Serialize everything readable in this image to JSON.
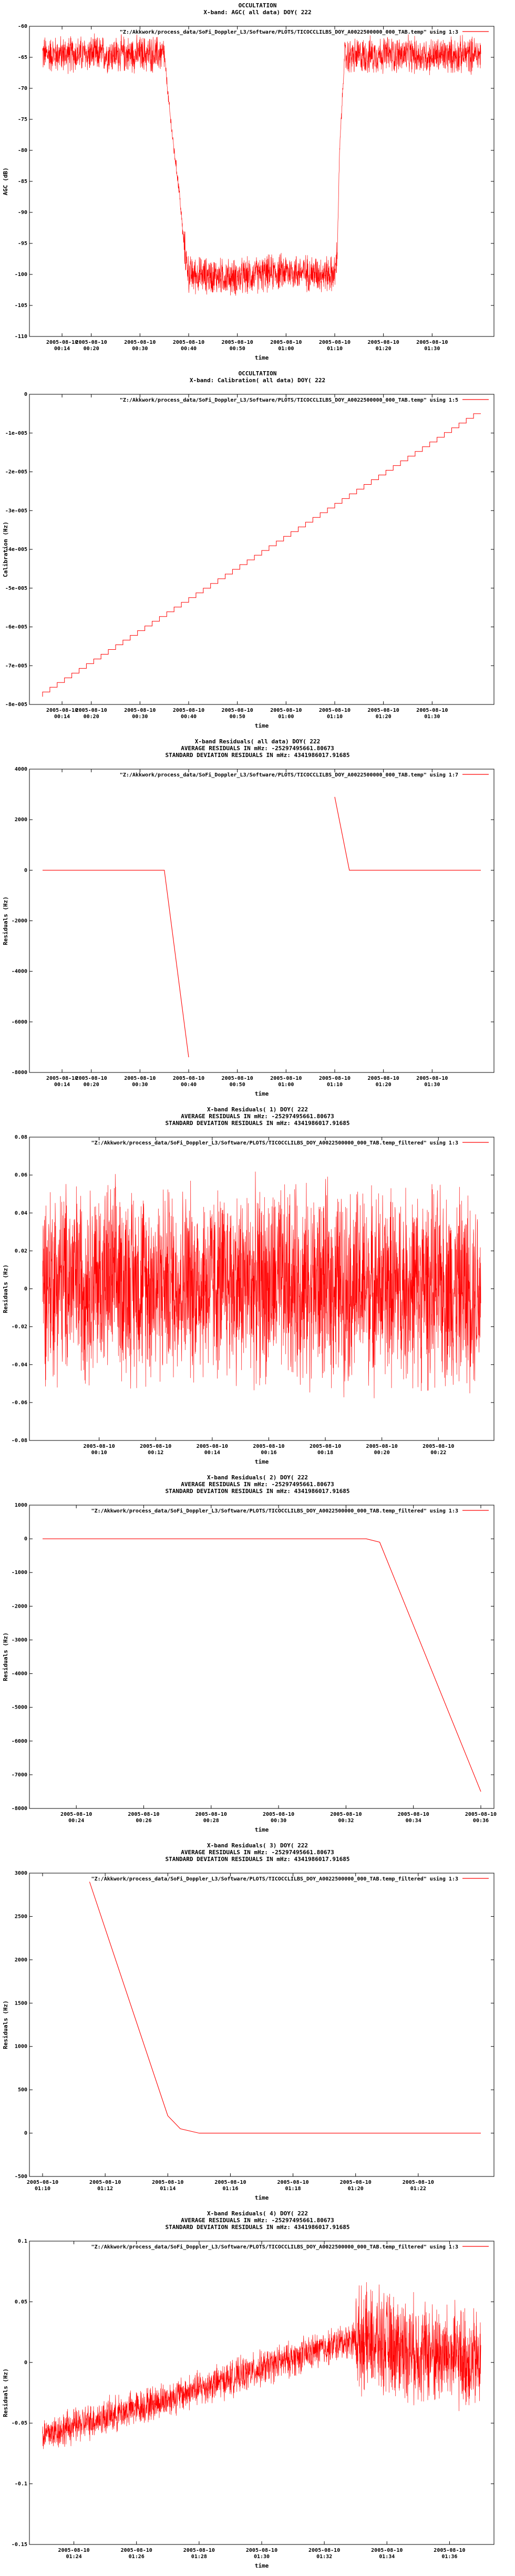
{
  "chart_data": [
    {
      "type": "line",
      "title_lines": [
        "OCCULTATION",
        "X-band: AGC( all data) DOY( 222"
      ],
      "legend": "\"Z:/Akkwork/process_data/SoFi_Doppler_L3/Software/PLOTS/TICOCCLILBS_DOY_A0022500000_000_TAB.temp\" using 1:3",
      "legend_placement": "top-right",
      "xlabel": "time",
      "ylabel": "AGC (dB)",
      "ylim": [
        -110,
        -60
      ],
      "yticks": [
        "-60",
        "-65",
        "-70",
        "-75",
        "-80",
        "-85",
        "-90",
        "-95",
        "-100",
        "-105",
        "-110"
      ],
      "xticks": [
        [
          "2005-08-10",
          "00:14"
        ],
        [
          "2005-08-10",
          "00:20"
        ],
        [
          "2005-08-10",
          "00:30"
        ],
        [
          "2005-08-10",
          "00:40"
        ],
        [
          "2005-08-10",
          "00:50"
        ],
        [
          "2005-08-10",
          "01:00"
        ],
        [
          "2005-08-10",
          "01:10"
        ],
        [
          "2005-08-10",
          "01:20"
        ],
        [
          "2005-08-10",
          "01:30"
        ]
      ],
      "series": [
        {
          "color": "#ff0000",
          "x": [
            "00:10",
            "00:35",
            "00:36",
            "00:37",
            "00:38",
            "00:39",
            "00:40",
            "00:50",
            "01:00",
            "01:10",
            "01:10.5",
            "01:11",
            "01:12",
            "01:20",
            "01:30",
            "01:40"
          ],
          "y": [
            -64.5,
            -64.5,
            -73,
            -80,
            -86,
            -95,
            -100,
            -100.5,
            -99.5,
            -100,
            -97,
            -80,
            -65,
            -64.5,
            -64.8,
            -64.5
          ],
          "noise": 3.5
        }
      ]
    },
    {
      "type": "line",
      "title_lines": [
        "OCCULTATION",
        "X-band: Calibration( all data) DOY( 222"
      ],
      "legend": "\"Z:/Akkwork/process_data/SoFi_Doppler_L3/Software/PLOTS/TICOCCLILBS_DOY_A0022500000_000_TAB.temp\" using 1:5",
      "legend_placement": "top-right",
      "xlabel": "time",
      "ylabel": "Calibration (Hz)",
      "ylim": [
        -8e-05,
        0
      ],
      "yticks": [
        "0",
        "-1e-005",
        "-2e-005",
        "-3e-005",
        "-4e-005",
        "-5e-005",
        "-6e-005",
        "-7e-005",
        "-8e-005"
      ],
      "xticks": [
        [
          "2005-08-10",
          "00:14"
        ],
        [
          "2005-08-10",
          "00:20"
        ],
        [
          "2005-08-10",
          "00:30"
        ],
        [
          "2005-08-10",
          "00:40"
        ],
        [
          "2005-08-10",
          "00:50"
        ],
        [
          "2005-08-10",
          "01:00"
        ],
        [
          "2005-08-10",
          "01:10"
        ],
        [
          "2005-08-10",
          "01:20"
        ],
        [
          "2005-08-10",
          "01:30"
        ]
      ],
      "series": [
        {
          "color": "#ff0000",
          "x": [
            "00:10",
            "01:40"
          ],
          "y": [
            -7.8e-05,
            -5e-06
          ],
          "noise": 0
        }
      ]
    },
    {
      "type": "line",
      "title_lines": [
        "X-band Residuals( all data) DOY( 222",
        "AVERAGE RESIDUALS IN mHz: -25297495661.80673",
        "STANDARD DEVIATION RESIDUALS IN mHz: 4341986017.91685"
      ],
      "legend": "\"Z:/Akkwork/process_data/SoFi_Doppler_L3/Software/PLOTS/TICOCCLILBS_DOY_A0022500000_000_TAB.temp\" using 1:7",
      "legend_placement": "top-right",
      "xlabel": "time",
      "ylabel": "Residuals (Hz)",
      "ylim": [
        -8000,
        4000
      ],
      "yticks": [
        "4000",
        "2000",
        "0",
        "-2000",
        "-4000",
        "-6000",
        "-8000"
      ],
      "xticks": [
        [
          "2005-08-10",
          "00:14"
        ],
        [
          "2005-08-10",
          "00:20"
        ],
        [
          "2005-08-10",
          "00:30"
        ],
        [
          "2005-08-10",
          "00:40"
        ],
        [
          "2005-08-10",
          "00:50"
        ],
        [
          "2005-08-10",
          "01:00"
        ],
        [
          "2005-08-10",
          "01:10"
        ],
        [
          "2005-08-10",
          "01:20"
        ],
        [
          "2005-08-10",
          "01:30"
        ]
      ],
      "series": [
        {
          "color": "#ff0000",
          "x": [
            "00:10",
            "00:35",
            "00:40"
          ],
          "y": [
            0,
            0,
            -7400
          ],
          "noise": 0
        },
        {
          "color": "#ff0000",
          "x": [
            "01:10",
            "01:13",
            "01:40"
          ],
          "y": [
            2900,
            0,
            0
          ],
          "noise": 0
        }
      ]
    },
    {
      "type": "line",
      "title_lines": [
        "X-band Residuals( 1) DOY( 222",
        "AVERAGE RESIDUALS IN mHz: -25297495661.80673",
        "STANDARD DEVIATION RESIDUALS IN mHz: 4341986017.91685"
      ],
      "legend": "\"Z:/Akkwork/process_data/SoFi_Doppler_L3/Software/PLOTS/TICOCCLILBS_DOY_A0022500000_000_TAB.temp_filtered\" using 1:3",
      "legend_placement": "top-right",
      "xlabel": "time",
      "ylabel": "Residuals (Hz)",
      "ylim": [
        -0.08,
        0.08
      ],
      "yticks": [
        "0.08",
        "0.06",
        "0.04",
        "0.02",
        "0",
        "-0.02",
        "-0.04",
        "-0.06",
        "-0.08"
      ],
      "xticks": [
        [
          "2005-08-10",
          "00:10"
        ],
        [
          "2005-08-10",
          "00:12"
        ],
        [
          "2005-08-10",
          "00:14"
        ],
        [
          "2005-08-10",
          "00:16"
        ],
        [
          "2005-08-10",
          "00:18"
        ],
        [
          "2005-08-10",
          "00:20"
        ],
        [
          "2005-08-10",
          "00:22"
        ]
      ],
      "series": [
        {
          "color": "#ff0000",
          "x": [
            "00:08",
            "00:23.5"
          ],
          "y": [
            0.005,
            0.0
          ],
          "noise": 0.06
        }
      ]
    },
    {
      "type": "line",
      "title_lines": [
        "X-band Residuals( 2) DOY( 222",
        "AVERAGE RESIDUALS IN mHz: -25297495661.80673",
        "STANDARD DEVIATION RESIDUALS IN mHz: 4341986017.91685"
      ],
      "legend": "\"Z:/Akkwork/process_data/SoFi_Doppler_L3/Software/PLOTS/TICOCCLILBS_DOY_A0022500000_000_TAB.temp_filtered\" using 1:3",
      "legend_placement": "top-right",
      "xlabel": "time",
      "ylabel": "Residuals (Hz)",
      "ylim": [
        -8000,
        1000
      ],
      "yticks": [
        "1000",
        "0",
        "-1000",
        "-2000",
        "-3000",
        "-4000",
        "-5000",
        "-6000",
        "-7000",
        "-8000"
      ],
      "xticks": [
        [
          "2005-08-10",
          "00:24"
        ],
        [
          "2005-08-10",
          "00:26"
        ],
        [
          "2005-08-10",
          "00:28"
        ],
        [
          "2005-08-10",
          "00:30"
        ],
        [
          "2005-08-10",
          "00:32"
        ],
        [
          "2005-08-10",
          "00:34"
        ],
        [
          "2005-08-10",
          "00:36"
        ]
      ],
      "series": [
        {
          "color": "#ff0000",
          "x": [
            "00:23",
            "00:32.6",
            "00:33",
            "00:36"
          ],
          "y": [
            0,
            0,
            -100,
            -7500
          ],
          "noise": 0
        }
      ]
    },
    {
      "type": "line",
      "title_lines": [
        "X-band Residuals( 3) DOY( 222",
        "AVERAGE RESIDUALS IN mHz: -25297495661.80673",
        "STANDARD DEVIATION RESIDUALS IN mHz: 4341986017.91685"
      ],
      "legend": "\"Z:/Akkwork/process_data/SoFi_Doppler_L3/Software/PLOTS/TICOCCLILBS_DOY_A0022500000_000_TAB.temp_filtered\" using 1:3",
      "legend_placement": "top-right",
      "xlabel": "time",
      "ylabel": "Residuals (Hz)",
      "ylim": [
        -500,
        3000
      ],
      "yticks": [
        "3000",
        "2500",
        "2000",
        "1500",
        "1000",
        "500",
        "0",
        "-500"
      ],
      "xticks": [
        [
          "2005-08-10",
          "01:10"
        ],
        [
          "2005-08-10",
          "01:12"
        ],
        [
          "2005-08-10",
          "01:14"
        ],
        [
          "2005-08-10",
          "01:16"
        ],
        [
          "2005-08-10",
          "01:18"
        ],
        [
          "2005-08-10",
          "01:20"
        ],
        [
          "2005-08-10",
          "01:22"
        ]
      ],
      "series": [
        {
          "color": "#ff0000",
          "x": [
            "01:11.5",
            "01:14",
            "01:14.4",
            "01:15",
            "01:24"
          ],
          "y": [
            2900,
            200,
            50,
            0,
            0
          ],
          "noise": 0
        }
      ]
    },
    {
      "type": "line",
      "title_lines": [
        "X-band Residuals( 4) DOY( 222",
        "AVERAGE RESIDUALS IN mHz: -25297495661.80673",
        "STANDARD DEVIATION RESIDUALS IN mHz: 4341986017.91685"
      ],
      "legend": "\"Z:/Akkwork/process_data/SoFi_Doppler_L3/Software/PLOTS/TICOCCLILBS_DOY_A0022500000_000_TAB.temp_filtered\" using 1:3",
      "legend_placement": "top-right",
      "xlabel": "time",
      "ylabel": "Residuals (Hz)",
      "ylim": [
        -0.15,
        0.1
      ],
      "yticks": [
        "0.1",
        "0.05",
        "0",
        "-0.05",
        "-0.1",
        "-0.15"
      ],
      "xticks": [
        [
          "2005-08-10",
          "01:24"
        ],
        [
          "2005-08-10",
          "01:26"
        ],
        [
          "2005-08-10",
          "01:28"
        ],
        [
          "2005-08-10",
          "01:30"
        ],
        [
          "2005-08-10",
          "01:32"
        ],
        [
          "2005-08-10",
          "01:34"
        ],
        [
          "2005-08-10",
          "01:36"
        ]
      ],
      "series": [
        {
          "color": "#ff0000",
          "x": [
            "01:23",
            "01:27",
            "01:33",
            "01:37"
          ],
          "y": [
            -0.06,
            -0.03,
            0.02,
            0.0
          ],
          "noise": 0.05
        }
      ]
    }
  ]
}
